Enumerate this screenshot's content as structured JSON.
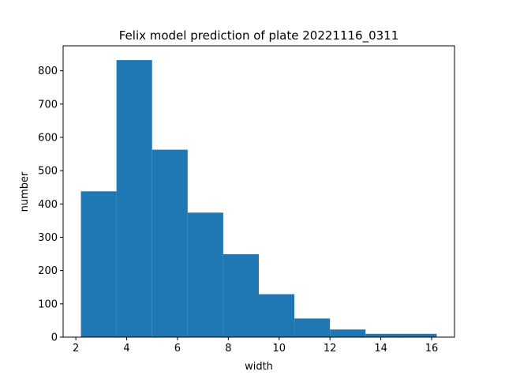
{
  "chart_data": {
    "type": "bar",
    "title": "Felix model prediction of plate 20221116_0311",
    "xlabel": "width",
    "ylabel": "number",
    "bin_edges": [
      2.2,
      3.6,
      5.0,
      6.4,
      7.8,
      9.2,
      10.6,
      12.0,
      13.4,
      14.8,
      16.2
    ],
    "values": [
      438,
      832,
      563,
      374,
      249,
      129,
      56,
      23,
      10,
      10
    ],
    "xlim": [
      1.5,
      16.9
    ],
    "ylim": [
      0,
      875
    ],
    "xticks": [
      2,
      4,
      6,
      8,
      10,
      12,
      14,
      16
    ],
    "yticks": [
      0,
      100,
      200,
      300,
      400,
      500,
      600,
      700,
      800
    ],
    "bar_color": "#1f77b4",
    "grid": false,
    "legend": "none"
  }
}
